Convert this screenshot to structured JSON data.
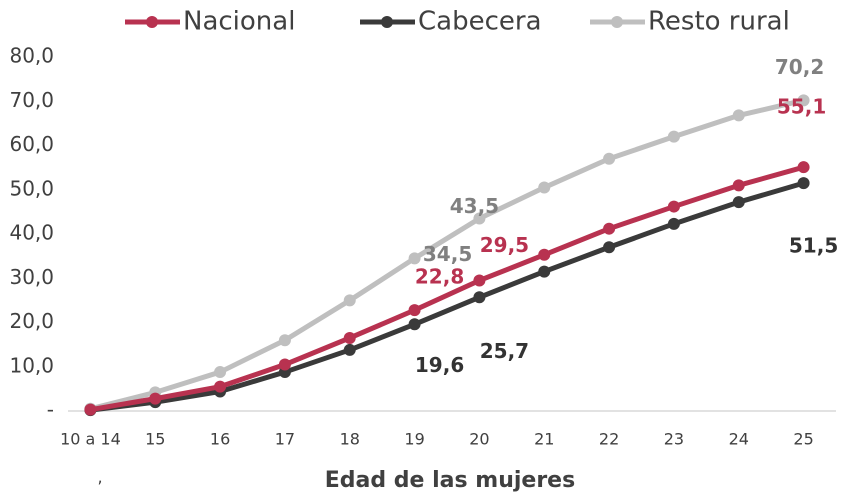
{
  "chart_data": {
    "type": "line",
    "x_label": "Edad de las mujeres",
    "footnote": ",",
    "categories": [
      "10 a 14",
      "15",
      "16",
      "17",
      "18",
      "19",
      "20",
      "21",
      "22",
      "23",
      "24",
      "25"
    ],
    "series": [
      {
        "name": "Nacional",
        "color": "#b83250",
        "values": [
          0.3,
          2.8,
          5.5,
          10.5,
          16.5,
          22.8,
          29.5,
          35.3,
          41.2,
          46.2,
          51.0,
          55.1
        ],
        "value_labels": [
          null,
          null,
          null,
          null,
          null,
          "22,8",
          "29,5",
          null,
          null,
          null,
          null,
          "55,1"
        ]
      },
      {
        "name": "Cabecera",
        "color": "#3a3a3a",
        "values": [
          0.2,
          2.0,
          4.4,
          8.8,
          13.8,
          19.6,
          25.7,
          31.5,
          37.0,
          42.3,
          47.2,
          51.5
        ],
        "value_labels": [
          null,
          null,
          null,
          null,
          null,
          "19,6",
          "25,7",
          null,
          null,
          null,
          null,
          "51,5"
        ]
      },
      {
        "name": "Resto rural",
        "color": "#bfbfbf",
        "values": [
          0.5,
          4.2,
          8.8,
          16.0,
          25.0,
          34.5,
          43.5,
          50.5,
          57.0,
          62.0,
          66.8,
          70.2
        ],
        "value_labels": [
          null,
          null,
          null,
          null,
          null,
          "34,5",
          "43,5",
          null,
          null,
          null,
          null,
          "70,2"
        ]
      }
    ],
    "ylim": [
      0,
      80
    ],
    "yticks": [
      {
        "value": 0,
        "label": "-"
      },
      {
        "value": 10,
        "label": "10,0"
      },
      {
        "value": 20,
        "label": "20,0"
      },
      {
        "value": 30,
        "label": "30,0"
      },
      {
        "value": 40,
        "label": "40,0"
      },
      {
        "value": 50,
        "label": "50,0"
      },
      {
        "value": 60,
        "label": "60,0"
      },
      {
        "value": 70,
        "label": "70,0"
      },
      {
        "value": 80,
        "label": "80,0"
      }
    ],
    "legend": "top",
    "grid": false
  }
}
